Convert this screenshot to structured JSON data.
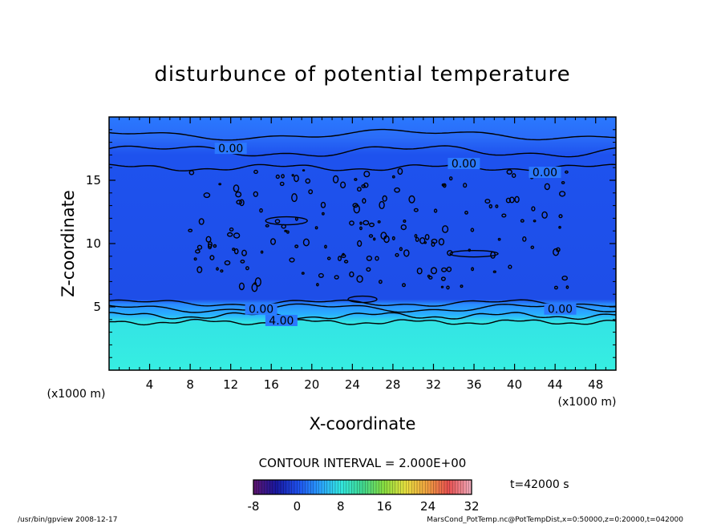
{
  "chart_data": {
    "type": "heatmap",
    "title": "disturbunce of potential temperature",
    "xlabel": "X-coordinate",
    "ylabel": "Z-coordinate",
    "x_unit": "(x1000 m)",
    "y_unit": "(x1000 m)",
    "xlim": [
      0,
      50
    ],
    "ylim": [
      0,
      20
    ],
    "x_ticks": [
      4,
      8,
      12,
      16,
      20,
      24,
      28,
      32,
      36,
      40,
      44,
      48
    ],
    "y_ticks": [
      5,
      10,
      15
    ],
    "contour_interval_text": "CONTOUR INTERVAL = 2.000E+00",
    "contour_labels": [
      {
        "x": 12,
        "z": 17.4,
        "text": "0.00"
      },
      {
        "x": 35,
        "z": 16.2,
        "text": "0.00"
      },
      {
        "x": 43,
        "z": 15.5,
        "text": "0.00"
      },
      {
        "x": 15,
        "z": 4.7,
        "text": "0.00"
      },
      {
        "x": 44.5,
        "z": 4.7,
        "text": "0.00"
      },
      {
        "x": 17,
        "z": 3.8,
        "text": "4.00"
      }
    ],
    "layers": [
      {
        "z_from": 0,
        "z_to": 3.8,
        "value_range": [
          10,
          12
        ],
        "color": "#33e8e0"
      },
      {
        "z_from": 3.8,
        "z_to": 5.2,
        "value_range": [
          2,
          8
        ],
        "color": "#2a9fff"
      },
      {
        "z_from": 5.2,
        "z_to": 17,
        "value_range": [
          -2,
          0
        ],
        "color": "#1e50ee"
      },
      {
        "z_from": 17,
        "z_to": 20,
        "value_range": [
          -1,
          2
        ],
        "color": "#2a7cff"
      }
    ],
    "colorbar": {
      "min": -8,
      "max": 32,
      "ticks": [
        -8,
        0,
        8,
        16,
        24,
        32
      ],
      "stops": [
        "#5a1470",
        "#1818a0",
        "#1e50ee",
        "#2a9fff",
        "#33e8e0",
        "#40d890",
        "#88dd40",
        "#e8e040",
        "#f0a040",
        "#e85050",
        "#f0a8b8"
      ]
    },
    "time_label": "t=42000 s"
  },
  "footer": {
    "left": "/usr/bin/gpview   2008-12-17",
    "right": "MarsCond_PotTemp.nc@PotTempDist,x=0:50000,z=0:20000,t=042000"
  }
}
